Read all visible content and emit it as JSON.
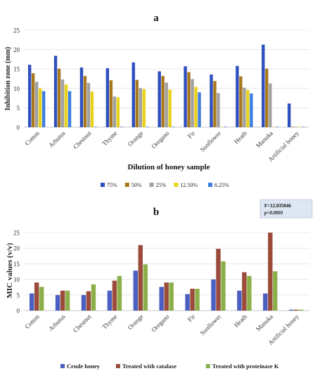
{
  "chart_data": [
    {
      "type": "bar",
      "title": "a",
      "xlabel": "Dilution of honey sample",
      "ylabel": "Inhibition zone (mm)",
      "ylim": [
        0,
        25
      ],
      "yticks": [
        0,
        5,
        10,
        15,
        20,
        25
      ],
      "grid": true,
      "legend_position": "bottom",
      "categories": [
        "Cotton",
        "Arbutus",
        "Chestnut",
        "Thyme",
        "Orange",
        "Oregano",
        "Fir",
        "Sunflower",
        "Heath",
        "Manuka",
        "Artificial honey"
      ],
      "series": [
        {
          "name": "75%",
          "color": "#2e4fbf",
          "values": [
            16.1,
            18.4,
            15.4,
            15.2,
            16.7,
            14.4,
            15.7,
            13.6,
            15.8,
            21.3,
            6.1
          ]
        },
        {
          "name": "50%",
          "color": "#a8781e",
          "values": [
            13.9,
            15.1,
            13.2,
            12.1,
            12.2,
            13.2,
            14.2,
            11.9,
            13.1,
            15.1,
            0.1
          ]
        },
        {
          "name": "25%",
          "color": "#a0a0a0",
          "values": [
            11.7,
            12.3,
            11.4,
            7.9,
            10.1,
            11.5,
            12.4,
            8.8,
            10.2,
            11.3,
            0.1
          ]
        },
        {
          "name": "12.50%",
          "color": "#e8d21a",
          "values": [
            10.0,
            11.0,
            9.2,
            7.7,
            9.8,
            9.7,
            10.4,
            0.1,
            9.6,
            0.1,
            0.1
          ]
        },
        {
          "name": "6.25%",
          "color": "#3d7ee0",
          "values": [
            9.3,
            9.3,
            0.1,
            0.1,
            0.1,
            0.1,
            9.0,
            0.1,
            8.7,
            0.1,
            0.1
          ]
        }
      ]
    },
    {
      "type": "bar",
      "title": "b",
      "xlabel": "",
      "ylabel": "MIC values (v/v)",
      "ylim": [
        0,
        25
      ],
      "yticks": [
        0,
        5,
        10,
        15,
        20,
        25
      ],
      "grid": true,
      "legend_position": "bottom",
      "annotation": [
        "F=12.035046",
        "p<0.0001"
      ],
      "categories": [
        "Cotton",
        "Arbutus",
        "Chestnut",
        "Thyme",
        "Orange",
        "Oregano",
        "Fir",
        "Sunflower",
        "Heath",
        "Manuka",
        "Artificial honey"
      ],
      "series": [
        {
          "name": "Crude honey",
          "color": "#4a5fc1",
          "values": [
            5.5,
            5.0,
            5.0,
            6.4,
            12.8,
            7.6,
            5.3,
            10.0,
            6.4,
            5.5,
            0.3
          ]
        },
        {
          "name": "Treated with catalase",
          "color": "#9a4b3a",
          "values": [
            9.0,
            6.4,
            6.2,
            9.6,
            21.0,
            9.0,
            7.0,
            19.8,
            12.3,
            25.0,
            0.3
          ]
        },
        {
          "name": "Treated with proteinase K",
          "color": "#8bb04a",
          "values": [
            7.6,
            6.4,
            8.4,
            11.1,
            14.8,
            9.0,
            7.0,
            15.8,
            11.1,
            12.6,
            0.3
          ]
        }
      ]
    }
  ]
}
